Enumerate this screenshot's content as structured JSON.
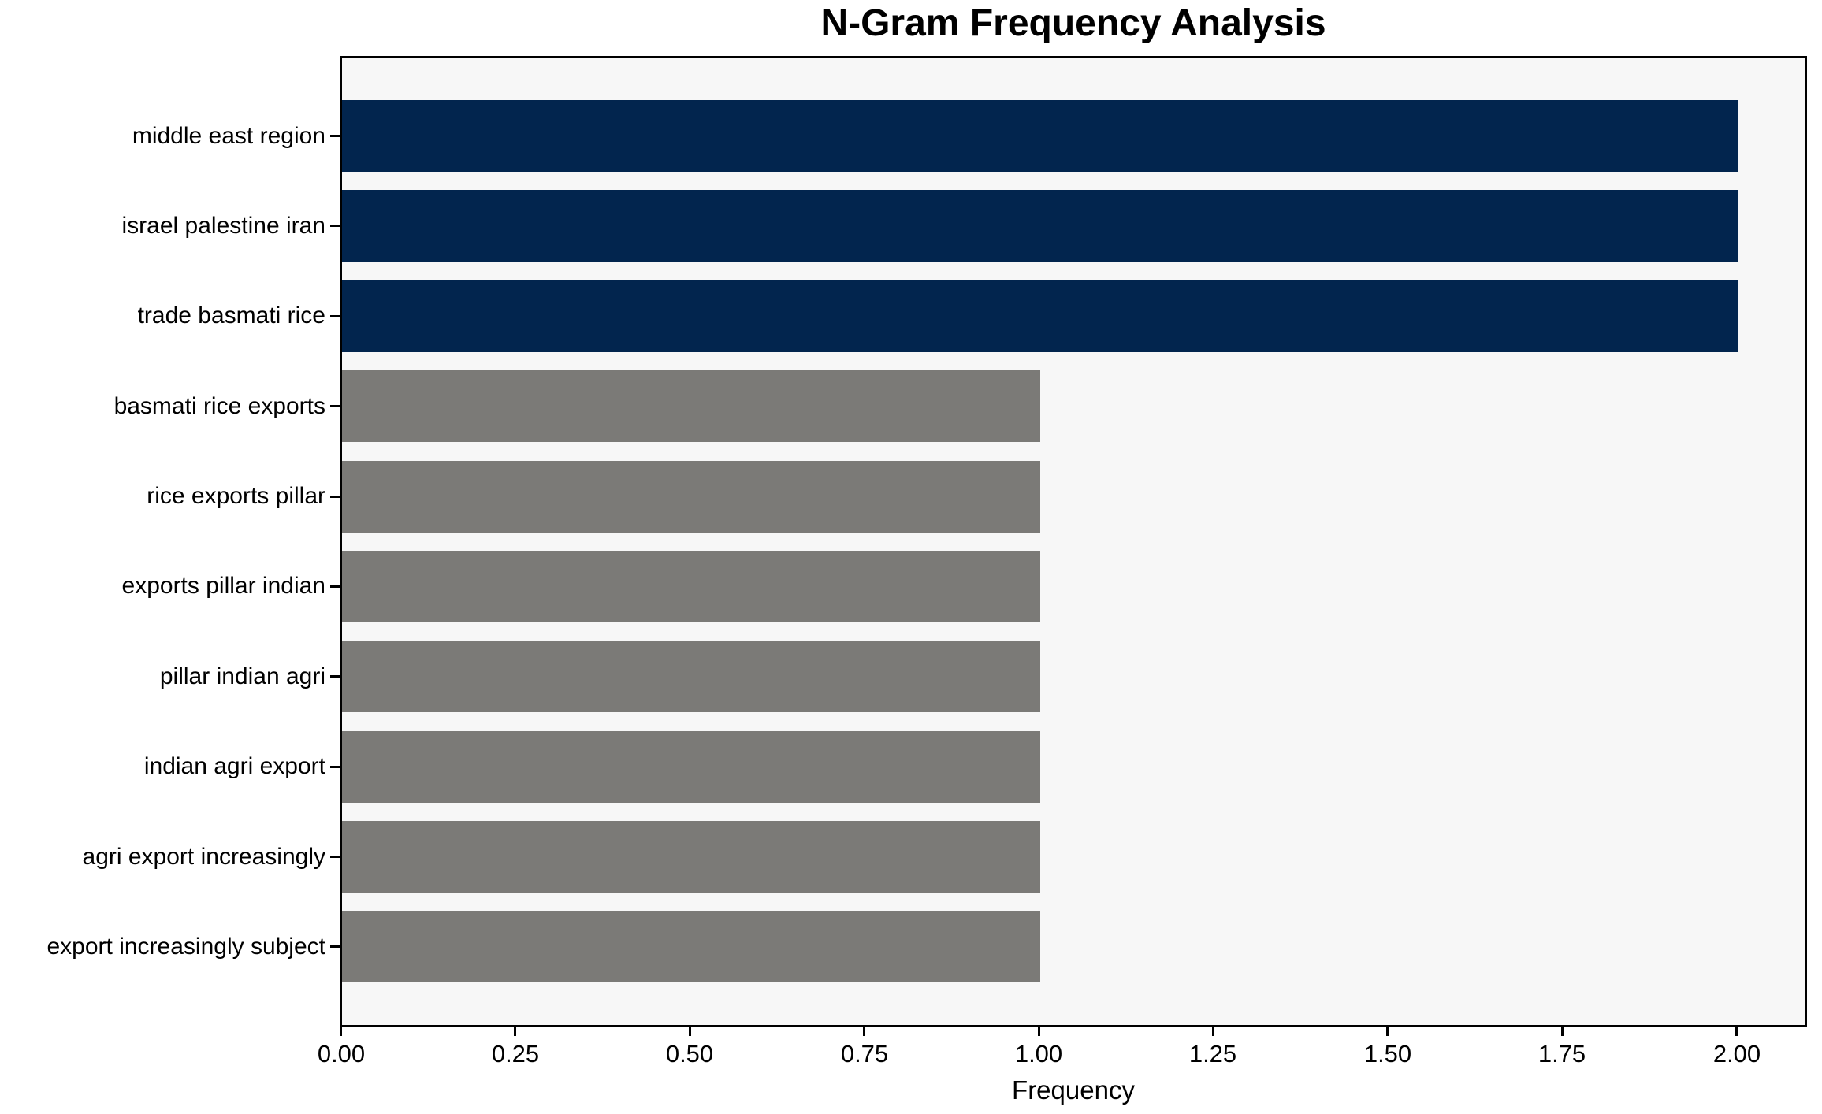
{
  "chart_data": {
    "type": "bar",
    "orientation": "horizontal",
    "title": "N-Gram Frequency Analysis",
    "xlabel": "Frequency",
    "ylabel": "",
    "categories": [
      "middle east region",
      "israel palestine iran",
      "trade basmati rice",
      "basmati rice exports",
      "rice exports pillar",
      "exports pillar indian",
      "pillar indian agri",
      "indian agri export",
      "agri export increasingly",
      "export increasingly subject"
    ],
    "values": [
      2,
      2,
      2,
      1,
      1,
      1,
      1,
      1,
      1,
      1
    ],
    "bar_colors": [
      "#02254e",
      "#02254e",
      "#02254e",
      "#7b7a77",
      "#7b7a77",
      "#7b7a77",
      "#7b7a77",
      "#7b7a77",
      "#7b7a77",
      "#7b7a77"
    ],
    "xlim": [
      0,
      2.1
    ],
    "xticks": [
      0.0,
      0.25,
      0.5,
      0.75,
      1.0,
      1.25,
      1.5,
      1.75,
      2.0
    ],
    "xtick_labels": [
      "0.00",
      "0.25",
      "0.50",
      "0.75",
      "1.00",
      "1.25",
      "1.50",
      "1.75",
      "2.00"
    ],
    "grid": false,
    "legend": null,
    "colors": {
      "highlight_bar": "#02254e",
      "default_bar": "#7b7a77",
      "plot_background": "#f7f7f7",
      "figure_background": "#ffffff",
      "axis": "#000000",
      "text": "#000000"
    }
  }
}
